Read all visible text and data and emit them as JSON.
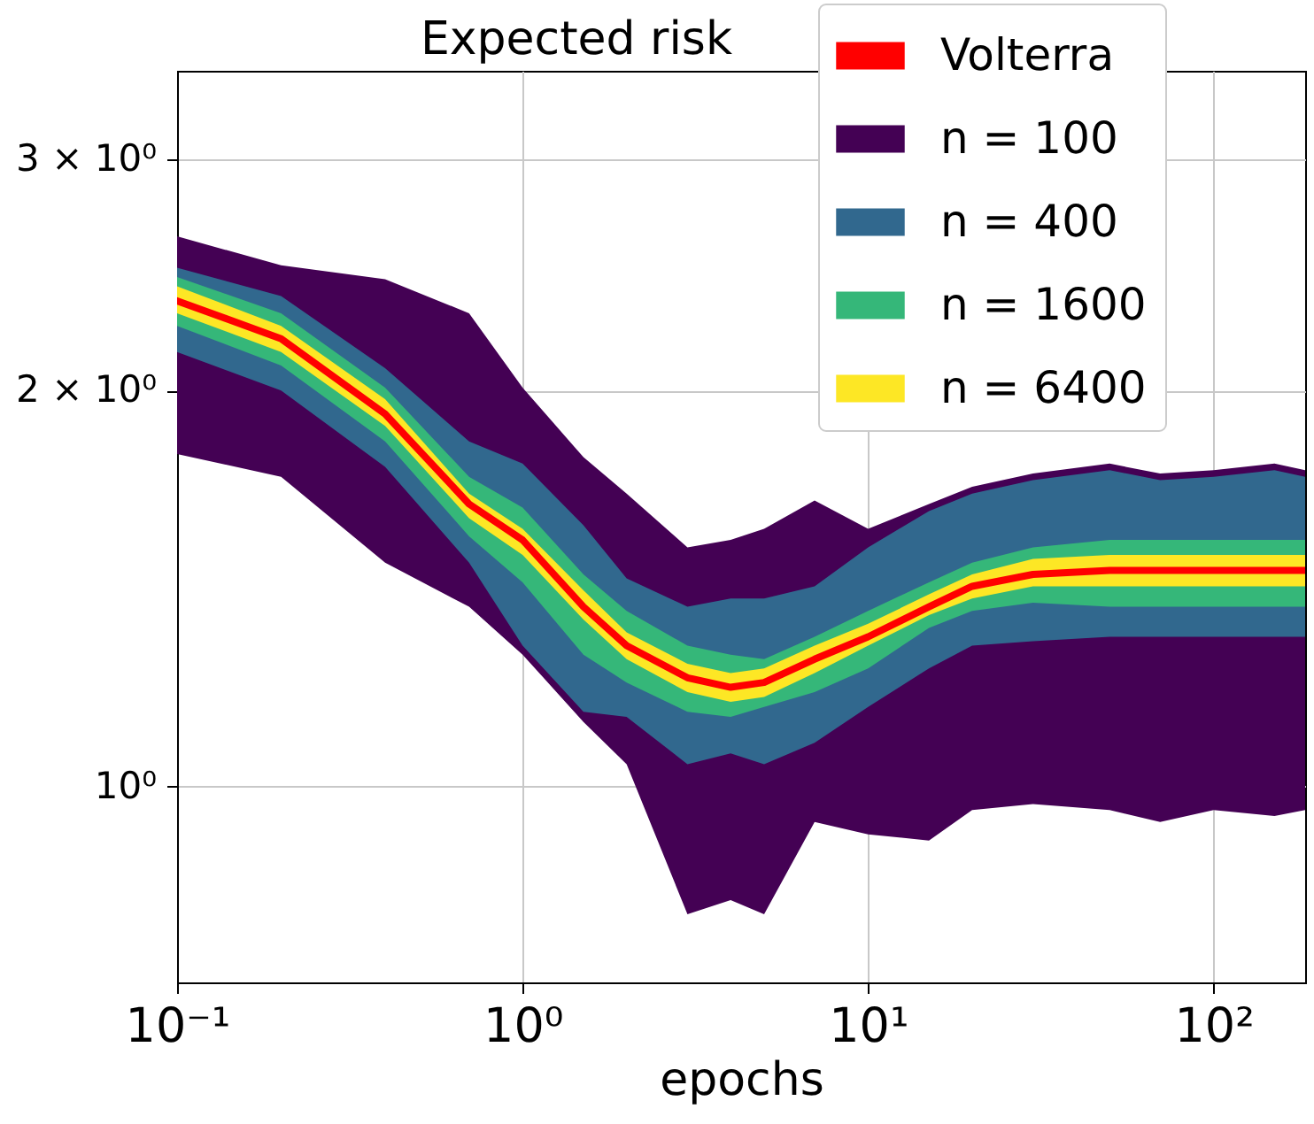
{
  "chart_data": {
    "type": "line",
    "title": "Expected risk",
    "xlabel": "epochs",
    "log": "xy",
    "grid": true,
    "legend": "top right",
    "xlim": [
      0.1,
      184
    ],
    "ylim": [
      0.71,
      3.5
    ],
    "xticks": [
      {
        "value": 0.1,
        "label": "10⁻¹"
      },
      {
        "value": 1,
        "label": "10⁰"
      },
      {
        "value": 10,
        "label": "10¹"
      },
      {
        "value": 100,
        "label": "10²"
      }
    ],
    "yticks": [
      {
        "value": 1,
        "label": "10⁰"
      },
      {
        "value": 2,
        "label": "2 × 10⁰"
      },
      {
        "value": 3,
        "label": "3 × 10⁰"
      }
    ],
    "x": [
      0.1,
      0.2,
      0.4,
      0.7,
      1,
      1.5,
      2,
      3,
      4,
      5,
      7,
      10,
      15,
      20,
      30,
      50,
      70,
      100,
      150,
      184
    ],
    "series": [
      {
        "name": "Volterra",
        "color": "#ff0000",
        "values": [
          2.34,
          2.19,
          1.92,
          1.64,
          1.54,
          1.37,
          1.28,
          1.21,
          1.19,
          1.2,
          1.25,
          1.3,
          1.37,
          1.42,
          1.45,
          1.46,
          1.46,
          1.46,
          1.46,
          1.46
        ]
      },
      {
        "name": "n = 100",
        "type": "area",
        "color": "#440154",
        "values": [
          null,
          null,
          null,
          null,
          null,
          null,
          null,
          null,
          null,
          null,
          null,
          null,
          null,
          null,
          null,
          null,
          null,
          null,
          null,
          null
        ],
        "upper": [
          2.62,
          2.49,
          2.43,
          2.29,
          2.01,
          1.78,
          1.67,
          1.52,
          1.54,
          1.57,
          1.65,
          1.57,
          1.64,
          1.69,
          1.73,
          1.76,
          1.73,
          1.74,
          1.76,
          1.74
        ],
        "lower": [
          1.79,
          1.72,
          1.48,
          1.37,
          1.26,
          1.12,
          1.04,
          0.8,
          0.82,
          0.8,
          0.94,
          0.92,
          0.91,
          0.96,
          0.97,
          0.96,
          0.94,
          0.96,
          0.95,
          0.96
        ]
      },
      {
        "name": "n = 400",
        "type": "area",
        "color": "#31688e",
        "values": [
          null,
          null,
          null,
          null,
          null,
          null,
          null,
          null,
          null,
          null,
          null,
          null,
          null,
          null,
          null,
          null,
          null,
          null,
          null,
          null
        ],
        "upper": [
          2.48,
          2.36,
          2.08,
          1.83,
          1.76,
          1.58,
          1.44,
          1.37,
          1.39,
          1.39,
          1.42,
          1.52,
          1.62,
          1.67,
          1.71,
          1.74,
          1.71,
          1.72,
          1.74,
          1.72
        ],
        "lower": [
          2.14,
          2.0,
          1.75,
          1.48,
          1.28,
          1.14,
          1.13,
          1.04,
          1.06,
          1.04,
          1.08,
          1.15,
          1.23,
          1.28,
          1.29,
          1.3,
          1.3,
          1.3,
          1.3,
          1.3
        ]
      },
      {
        "name": "n = 1600",
        "type": "area",
        "color": "#35b779",
        "values": [
          null,
          null,
          null,
          null,
          null,
          null,
          null,
          null,
          null,
          null,
          null,
          null,
          null,
          null,
          null,
          null,
          null,
          null,
          null,
          null
        ],
        "upper": [
          2.44,
          2.29,
          2.01,
          1.72,
          1.63,
          1.45,
          1.36,
          1.28,
          1.26,
          1.25,
          1.3,
          1.36,
          1.43,
          1.48,
          1.52,
          1.54,
          1.54,
          1.54,
          1.54,
          1.54
        ],
        "lower": [
          2.24,
          2.09,
          1.83,
          1.55,
          1.43,
          1.26,
          1.2,
          1.14,
          1.13,
          1.15,
          1.18,
          1.23,
          1.32,
          1.36,
          1.38,
          1.37,
          1.37,
          1.37,
          1.37,
          1.37
        ]
      },
      {
        "name": "n = 6400",
        "type": "area",
        "color": "#fde725",
        "values": [
          null,
          null,
          null,
          null,
          null,
          null,
          null,
          null,
          null,
          null,
          null,
          null,
          null,
          null,
          null,
          null,
          null,
          null,
          null,
          null
        ],
        "upper": [
          2.4,
          2.24,
          1.97,
          1.67,
          1.57,
          1.41,
          1.31,
          1.24,
          1.22,
          1.23,
          1.28,
          1.33,
          1.4,
          1.45,
          1.49,
          1.5,
          1.5,
          1.5,
          1.5,
          1.5
        ],
        "lower": [
          2.29,
          2.14,
          1.88,
          1.6,
          1.5,
          1.34,
          1.25,
          1.18,
          1.16,
          1.17,
          1.22,
          1.28,
          1.35,
          1.39,
          1.42,
          1.42,
          1.42,
          1.42,
          1.42,
          1.42
        ]
      }
    ]
  }
}
